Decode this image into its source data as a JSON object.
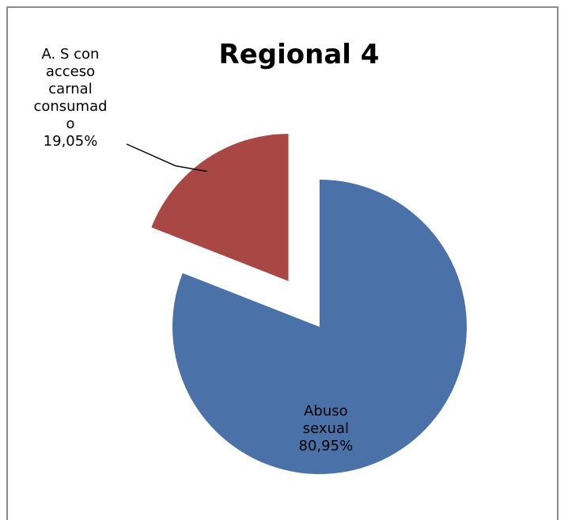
{
  "chart_data": {
    "type": "pie",
    "title": "Regional 4",
    "slices": [
      {
        "label_lines": [
          "Abuso",
          "sexual",
          "80,95%"
        ],
        "value": 80.95,
        "color": "#4a72a8",
        "exploded": false
      },
      {
        "label_lines": [
          "A. S con",
          "acceso",
          "carnal",
          "consumad",
          "o",
          "19,05%"
        ],
        "value": 19.05,
        "color": "#a84744",
        "exploded": true
      }
    ],
    "legend": "none",
    "leader_line": true
  }
}
